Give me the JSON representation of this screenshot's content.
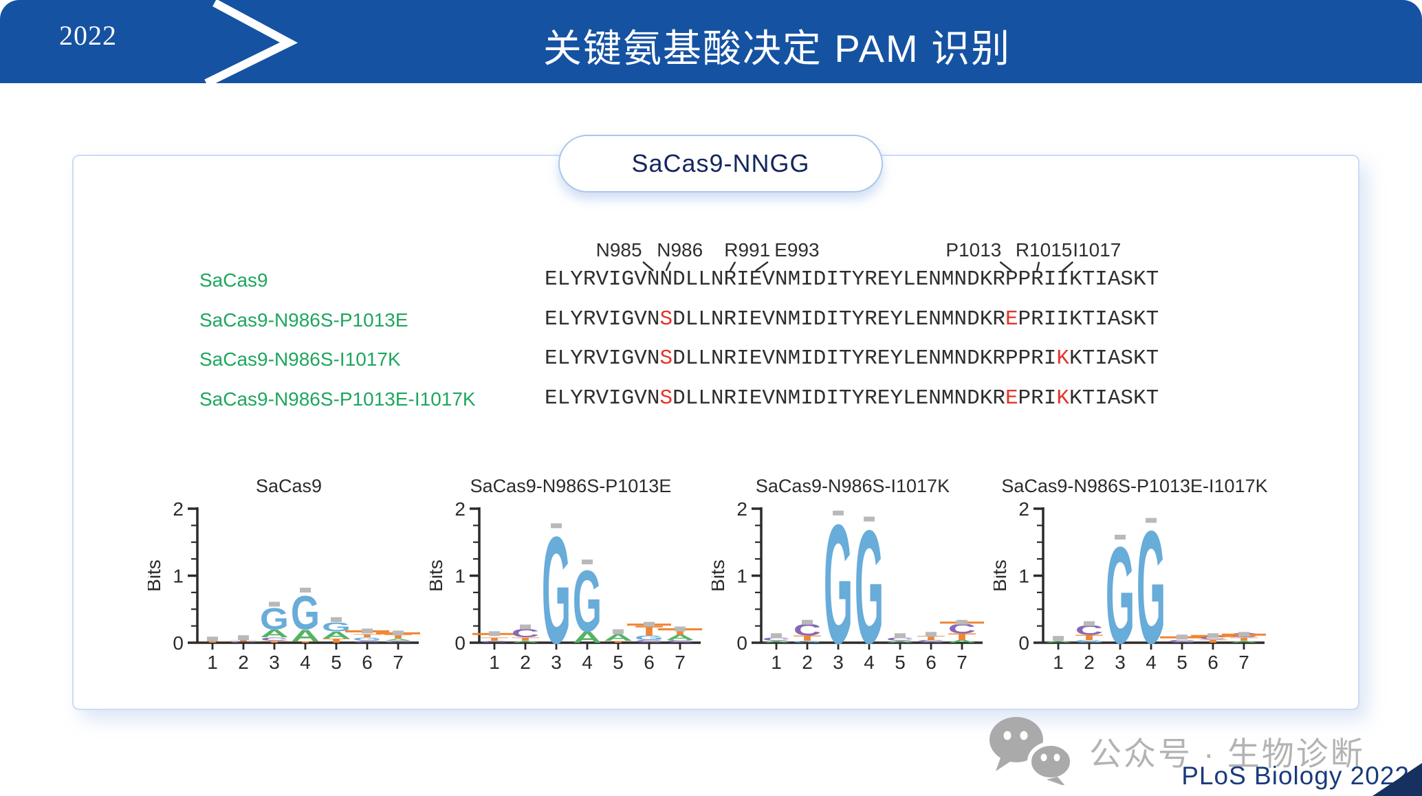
{
  "slide": {
    "year": "2022",
    "title": "关键氨基酸决定 PAM 识别",
    "pill_label": "SaCas9-NNGG",
    "wechat_label": "公众号 · 生物诊断",
    "source": "PLoS Biology 2022",
    "colors": {
      "banner_blue": "#1552a2",
      "pill_text_navy": "#14265e",
      "source_navy": "#1a3a7c",
      "wechat_gray": "#b3b3b3"
    }
  },
  "alignment": {
    "position_labels": [
      {
        "text": "N985",
        "idx": 8,
        "dx": -50
      },
      {
        "text": "N986",
        "idx": 9,
        "dx": 20
      },
      {
        "text": "R991",
        "idx": 14,
        "dx": 25
      },
      {
        "text": "E993",
        "idx": 16,
        "dx": 60
      },
      {
        "text": "P1013",
        "idx": 36,
        "dx": -55
      },
      {
        "text": "R1015",
        "idx": 38,
        "dx": 10
      },
      {
        "text": "I1017",
        "idx": 40,
        "dx": 50
      }
    ],
    "rows": [
      {
        "name": "SaCas9",
        "seq": "ELYRVIGVNNDLLNRIEVNMIDITYREYLENMNDKRPPRIIKTIASKT",
        "red": []
      },
      {
        "name": "SaCas9-N986S-P1013E",
        "seq": "ELYRVIGVNSDLLNRIEVNMIDITYREYLENMNDKREPRIIKTIASKT",
        "red": [
          9,
          36
        ]
      },
      {
        "name": "SaCas9-N986S-I1017K",
        "seq": "ELYRVIGVNSDLLNRIEVNMIDITYREYLENMNDKRPPRIKKTIASKT",
        "red": [
          9,
          40
        ]
      },
      {
        "name": "SaCas9-N986S-P1013E-I1017K",
        "seq": "ELYRVIGVNSDLLNRIEVNMIDITYREYLENMNDKREPRIKKTIASKT",
        "red": [
          9,
          36,
          40
        ]
      }
    ],
    "colors": {
      "label_green": "#1ea65e",
      "mutation_red": "#e3342b",
      "sequence_black": "#2e2e2e"
    }
  },
  "letter_colors": {
    "G": "#68acd9",
    "A": "#54b364",
    "C": "#8668b5",
    "T": "#ef8634",
    "error_bar": "#b9b9b9"
  },
  "chart_data": [
    {
      "type": "bar",
      "subtype": "sequence-logo",
      "title": "SaCas9",
      "xlabel": "",
      "ylabel": "Bits",
      "ylim": [
        0,
        2
      ],
      "yticks": [
        "0",
        "1",
        "2"
      ],
      "categories": [
        "1",
        "2",
        "3",
        "4",
        "5",
        "6",
        "7"
      ],
      "columns": [
        {
          "stack": [
            [
              "T",
              0.02
            ]
          ],
          "err": 0.05,
          "whisker": false
        },
        {
          "stack": [
            [
              "C",
              0.02
            ],
            [
              "T",
              0.02
            ]
          ],
          "err": 0.07,
          "whisker": false
        },
        {
          "stack": [
            [
              "T",
              0.03
            ],
            [
              "C",
              0.05
            ],
            [
              "A",
              0.12
            ],
            [
              "G",
              0.33
            ]
          ],
          "err": 0.57,
          "whisker": false
        },
        {
          "stack": [
            [
              "T",
              0.02
            ],
            [
              "A",
              0.18
            ],
            [
              "G",
              0.52
            ]
          ],
          "err": 0.78,
          "whisker": false
        },
        {
          "stack": [
            [
              "T",
              0.06
            ],
            [
              "A",
              0.11
            ],
            [
              "G",
              0.14
            ]
          ],
          "err": 0.34,
          "whisker": false
        },
        {
          "stack": [
            [
              "C",
              0.03
            ],
            [
              "G",
              0.05
            ],
            [
              "T",
              0.05
            ]
          ],
          "err": 0.17,
          "whisker": true
        },
        {
          "stack": [
            [
              "C",
              0.03
            ],
            [
              "A",
              0.03
            ],
            [
              "T",
              0.06
            ]
          ],
          "err": 0.14,
          "whisker": true
        }
      ]
    },
    {
      "type": "bar",
      "subtype": "sequence-logo",
      "title": "SaCas9-N986S-P1013E",
      "xlabel": "",
      "ylabel": "Bits",
      "ylim": [
        0,
        2
      ],
      "yticks": [
        "0",
        "1",
        "2"
      ],
      "categories": [
        "1",
        "2",
        "3",
        "4",
        "5",
        "6",
        "7"
      ],
      "columns": [
        {
          "stack": [
            [
              "C",
              0.03
            ],
            [
              "T",
              0.05
            ]
          ],
          "err": 0.13,
          "whisker": true
        },
        {
          "stack": [
            [
              "A",
              0.03
            ],
            [
              "T",
              0.05
            ],
            [
              "C",
              0.13
            ]
          ],
          "err": 0.23,
          "whisker": false
        },
        {
          "stack": [
            [
              "G",
              1.66
            ]
          ],
          "err": 1.74,
          "whisker": false
        },
        {
          "stack": [
            [
              "A",
              0.17
            ],
            [
              "G",
              0.95
            ]
          ],
          "err": 1.2,
          "whisker": false
        },
        {
          "stack": [
            [
              "T",
              0.03
            ],
            [
              "A",
              0.1
            ]
          ],
          "err": 0.16,
          "whisker": false
        },
        {
          "stack": [
            [
              "C",
              0.04
            ],
            [
              "G",
              0.07
            ],
            [
              "T",
              0.15
            ]
          ],
          "err": 0.27,
          "whisker": true
        },
        {
          "stack": [
            [
              "C",
              0.04
            ],
            [
              "A",
              0.08
            ],
            [
              "T",
              0.1
            ]
          ],
          "err": 0.2,
          "whisker": true
        }
      ]
    },
    {
      "type": "bar",
      "subtype": "sequence-logo",
      "title": "SaCas9-N986S-I1017K",
      "xlabel": "",
      "ylabel": "Bits",
      "ylim": [
        0,
        2
      ],
      "yticks": [
        "0",
        "1",
        "2"
      ],
      "categories": [
        "1",
        "2",
        "3",
        "4",
        "5",
        "6",
        "7"
      ],
      "columns": [
        {
          "stack": [
            [
              "A",
              0.03
            ],
            [
              "C",
              0.05
            ]
          ],
          "err": 0.1,
          "whisker": false
        },
        {
          "stack": [
            [
              "G",
              0.03
            ],
            [
              "T",
              0.08
            ],
            [
              "C",
              0.18
            ]
          ],
          "err": 0.3,
          "whisker": false
        },
        {
          "stack": [
            [
              "G",
              1.85
            ]
          ],
          "err": 1.93,
          "whisker": false
        },
        {
          "stack": [
            [
              "G",
              1.76
            ]
          ],
          "err": 1.84,
          "whisker": false
        },
        {
          "stack": [
            [
              "A",
              0.03
            ],
            [
              "C",
              0.05
            ]
          ],
          "err": 0.1,
          "whisker": false
        },
        {
          "stack": [
            [
              "C",
              0.04
            ],
            [
              "T",
              0.06
            ]
          ],
          "err": 0.12,
          "whisker": false
        },
        {
          "stack": [
            [
              "A",
              0.04
            ],
            [
              "T",
              0.1
            ],
            [
              "C",
              0.15
            ]
          ],
          "err": 0.3,
          "whisker": true
        }
      ]
    },
    {
      "type": "bar",
      "subtype": "sequence-logo",
      "title": "SaCas9-N986S-P1013E-I1017K",
      "xlabel": "",
      "ylabel": "Bits",
      "ylim": [
        0,
        2
      ],
      "yticks": [
        "0",
        "1",
        "2"
      ],
      "categories": [
        "1",
        "2",
        "3",
        "4",
        "5",
        "6",
        "7"
      ],
      "columns": [
        {
          "stack": [
            [
              "A",
              0.03
            ]
          ],
          "err": 0.06,
          "whisker": false
        },
        {
          "stack": [
            [
              "G",
              0.04
            ],
            [
              "T",
              0.08
            ],
            [
              "C",
              0.15
            ]
          ],
          "err": 0.28,
          "whisker": false
        },
        {
          "stack": [
            [
              "G",
              1.5
            ]
          ],
          "err": 1.57,
          "whisker": false
        },
        {
          "stack": [
            [
              "G",
              1.75
            ]
          ],
          "err": 1.82,
          "whisker": false
        },
        {
          "stack": [
            [
              "C",
              0.04
            ]
          ],
          "err": 0.08,
          "whisker": true
        },
        {
          "stack": [
            [
              "T",
              0.05
            ],
            [
              "C",
              0.04
            ]
          ],
          "err": 0.1,
          "whisker": true
        },
        {
          "stack": [
            [
              "A",
              0.03
            ],
            [
              "T",
              0.05
            ],
            [
              "C",
              0.07
            ]
          ],
          "err": 0.12,
          "whisker": true
        }
      ]
    }
  ]
}
